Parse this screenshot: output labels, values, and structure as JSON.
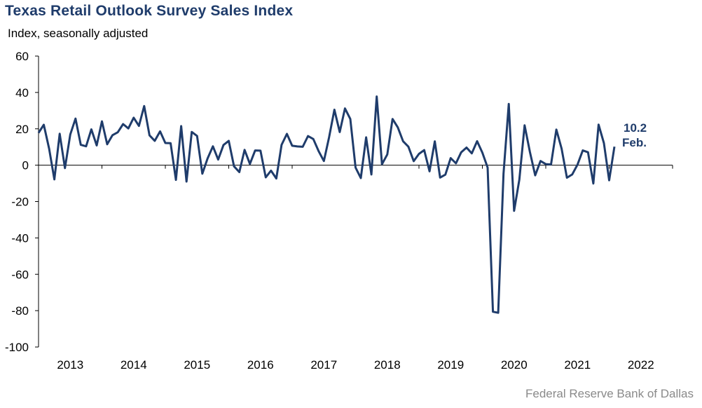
{
  "chart_data": {
    "type": "line",
    "title": "Texas Retail Outlook Survey Sales Index",
    "subtitle": "Index, seasonally adjusted",
    "source": "Federal Reserve Bank of Dallas",
    "ylim": [
      -100,
      60
    ],
    "yticks": [
      60,
      40,
      20,
      0,
      -20,
      -40,
      -60,
      -80,
      -100
    ],
    "ytick_labels": [
      "60",
      "40",
      "20",
      "0",
      "-20",
      "-40",
      "-60",
      "-80",
      "-100"
    ],
    "xlim": [
      "2012-07",
      "2022-07"
    ],
    "x_tick_labels": [
      "2013",
      "2014",
      "2015",
      "2016",
      "2017",
      "2018",
      "2019",
      "2020",
      "2021",
      "2022"
    ],
    "grid": false,
    "line_color": "#1f3c6b",
    "series": [
      {
        "start": "2012-07",
        "frequency": "monthly",
        "values": [
          17.8,
          22.2,
          9.1,
          -7.8,
          17.3,
          -1.6,
          16.9,
          25.6,
          11.2,
          10.4,
          19.7,
          10.9,
          24.1,
          11.5,
          16.5,
          18.1,
          22.6,
          20.2,
          26.1,
          21.6,
          32.5,
          16.4,
          13.4,
          18.6,
          12.2,
          12.1,
          -8.1,
          21.5,
          -9.0,
          18.3,
          16.1,
          -4.7,
          3.7,
          10.4,
          3.1,
          11.1,
          13.4,
          -0.6,
          -3.8,
          8.4,
          0.7,
          8.1,
          8.0,
          -6.7,
          -3.0,
          -7.3,
          11.2,
          17.2,
          10.7,
          10.3,
          10.1,
          16.0,
          14.4,
          7.8,
          2.3,
          15.5,
          30.5,
          18.2,
          31.2,
          25.4,
          -1.3,
          -7.1,
          15.3,
          -5.1,
          37.8,
          0.5,
          5.9,
          25.4,
          20.8,
          13.1,
          10.2,
          2.2,
          6.2,
          8.3,
          -3.4,
          13.1,
          -6.8,
          -5.2,
          3.9,
          1.0,
          7.1,
          9.7,
          6.5,
          13.2,
          6.9,
          -1.3,
          -80.6,
          -81.2,
          -4.6,
          33.7,
          -25.1,
          -7.9,
          21.9,
          7.2,
          -5.6,
          2.3,
          0.6,
          0.4,
          19.6,
          9.1,
          -6.9,
          -5.1,
          0.3,
          8.1,
          7.1,
          -10.1,
          22.3,
          12.1,
          -8.3,
          10.2
        ]
      }
    ],
    "annotation": {
      "value": "10.2",
      "label": "Feb."
    }
  }
}
